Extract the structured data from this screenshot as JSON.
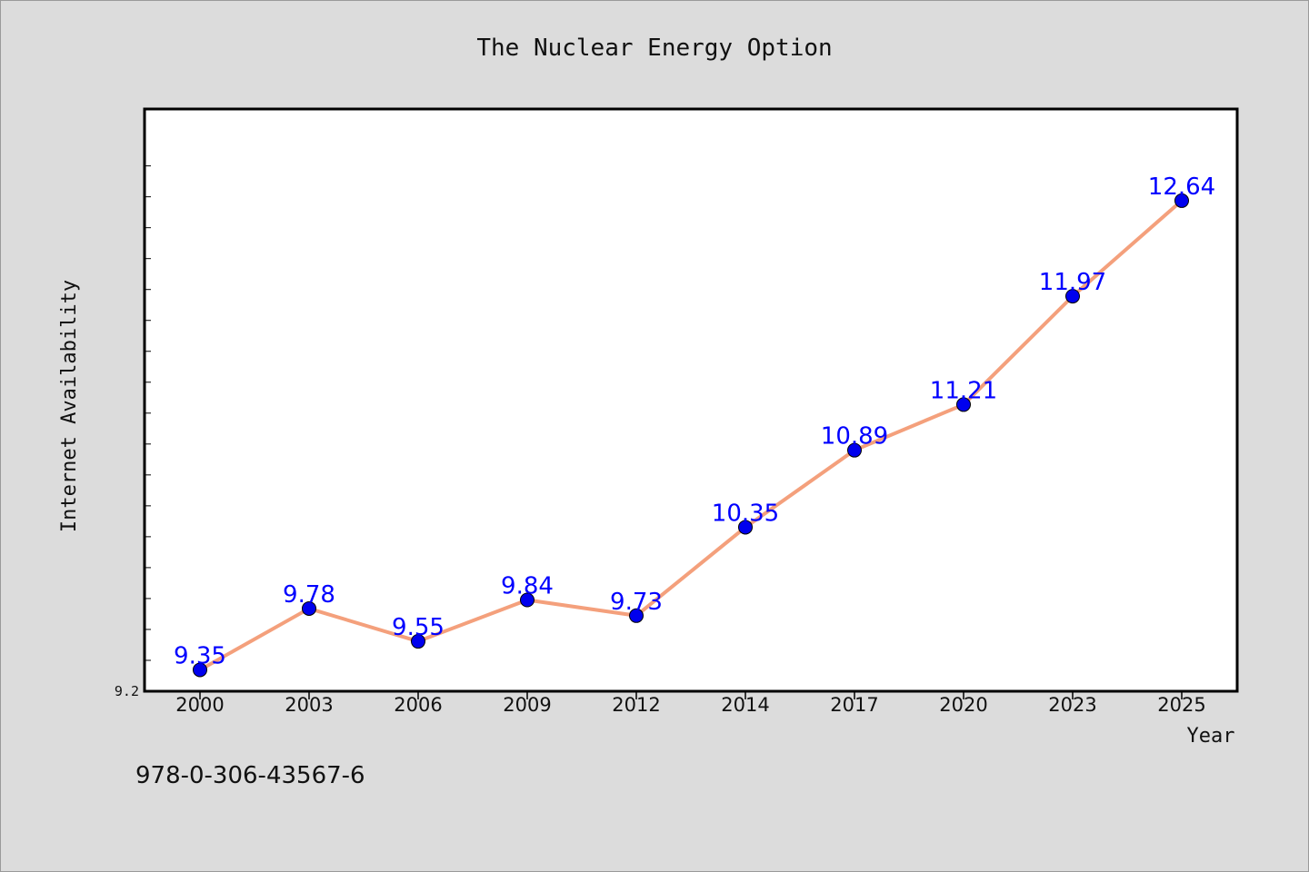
{
  "chart_data": {
    "type": "line",
    "title": "The Nuclear Energy Option",
    "xlabel": "Year",
    "ylabel": "Internet Availability",
    "categories": [
      "2000",
      "2003",
      "2006",
      "2009",
      "2012",
      "2014",
      "2017",
      "2020",
      "2023",
      "2025"
    ],
    "series": [
      {
        "values": [
          9.35,
          9.78,
          9.55,
          9.84,
          9.73,
          10.35,
          10.89,
          11.21,
          11.97,
          12.64
        ],
        "labels": [
          "9.35",
          "9.78",
          "9.55",
          "9.84",
          "9.73",
          "10.35",
          "10.89",
          "11.21",
          "11.97",
          "12.64"
        ],
        "line_color": "#f4a07c",
        "marker_color": "#0000ee",
        "label_color": "#0000ff"
      }
    ],
    "ylim": [
      9.2,
      13.0
    ],
    "y_tick_labels": [
      "9.2"
    ],
    "grid": false,
    "legend": "none"
  },
  "footer": {
    "isbn": "978-0-306-43567-6"
  },
  "colors": {
    "background": "#dcdcdc",
    "plot_background": "#ffffff",
    "axis": "#000000"
  }
}
